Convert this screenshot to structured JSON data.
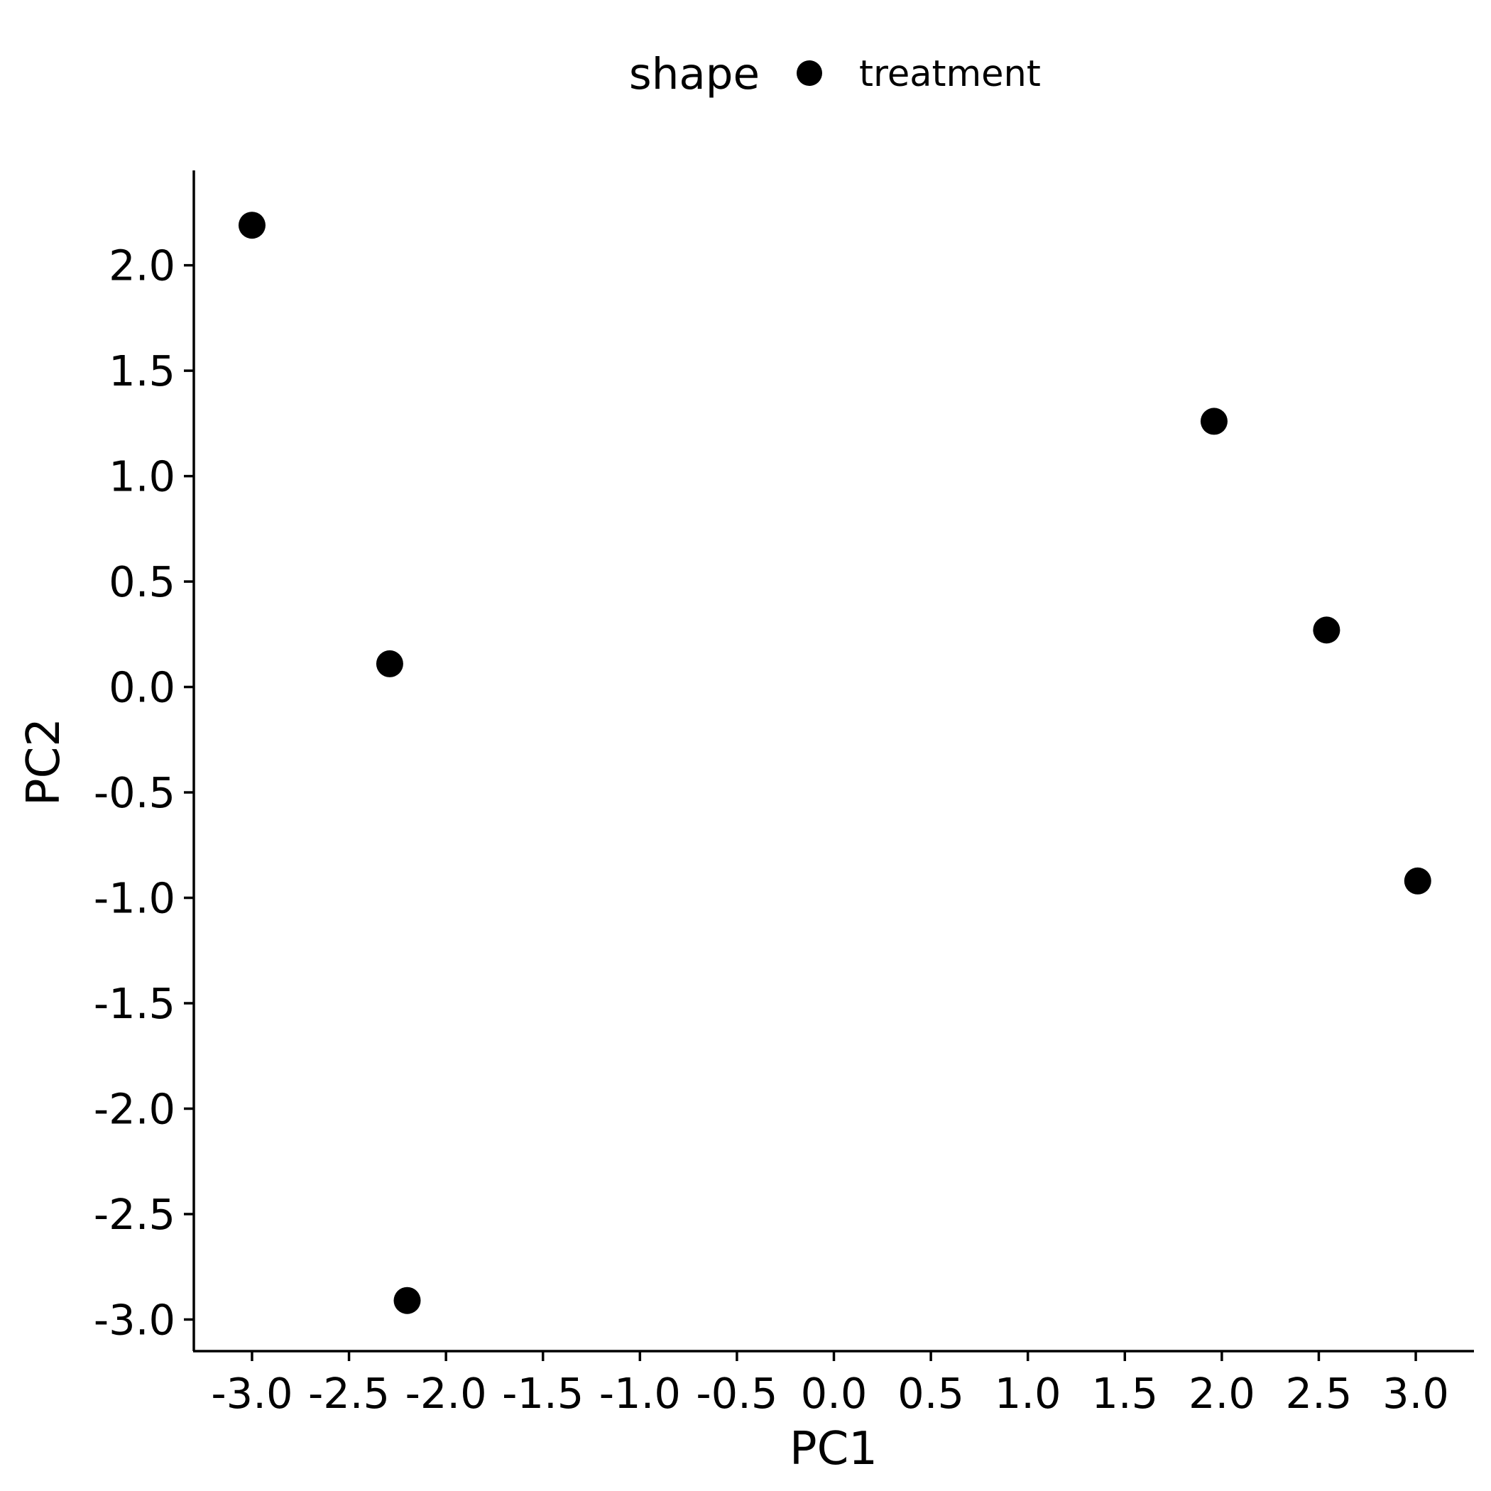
{
  "chart_data": {
    "type": "scatter",
    "title": "",
    "xlabel": "PC1",
    "ylabel": "PC2",
    "xlim": [
      -3.3,
      3.3
    ],
    "ylim": [
      -3.15,
      2.45
    ],
    "xticks": [
      "-3.0",
      "-2.5",
      "-2.0",
      "-1.5",
      "-1.0",
      "-0.5",
      "0.0",
      "0.5",
      "1.0",
      "1.5",
      "2.0",
      "2.5",
      "3.0"
    ],
    "yticks": [
      "-3.0",
      "-2.5",
      "-2.0",
      "-1.5",
      "-1.0",
      "-0.5",
      "0.0",
      "0.5",
      "1.0",
      "1.5",
      "2.0"
    ],
    "grid": false,
    "legend": {
      "title": "shape",
      "position": "top",
      "entries": [
        "treatment"
      ]
    },
    "series": [
      {
        "name": "treatment",
        "color": "#000000",
        "marker": "circle",
        "points": [
          {
            "x": -3.0,
            "y": 2.19
          },
          {
            "x": -2.29,
            "y": 0.11
          },
          {
            "x": -2.2,
            "y": -2.91
          },
          {
            "x": 1.96,
            "y": 1.26
          },
          {
            "x": 2.54,
            "y": 0.27
          },
          {
            "x": 3.01,
            "y": -0.92
          }
        ]
      }
    ]
  }
}
